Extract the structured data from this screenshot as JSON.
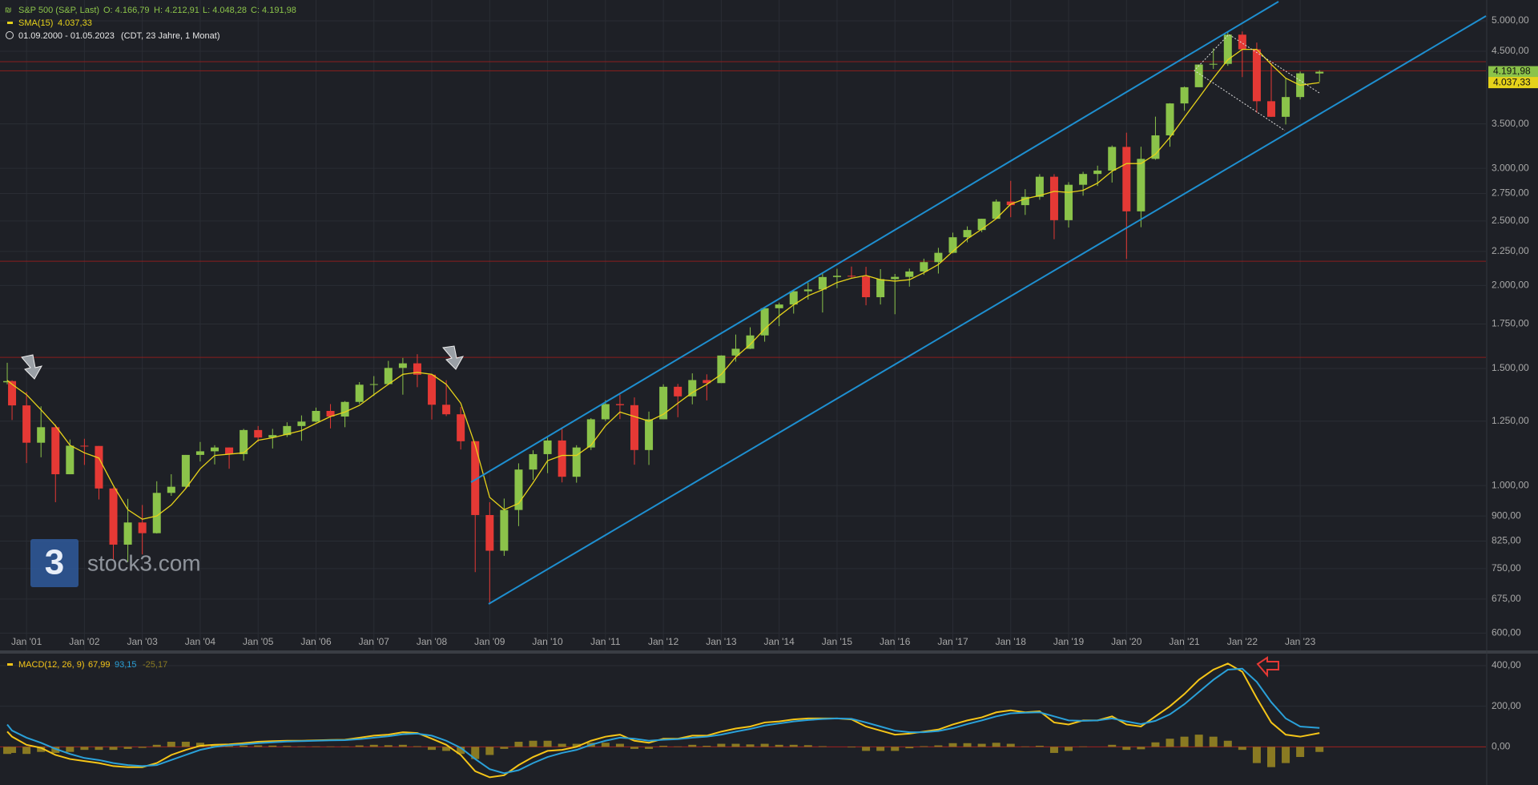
{
  "chart_data": [
    {
      "type": "candlestick",
      "title": "S&P 500 (S&P, Last)",
      "ohlc_labels": [
        "O: 4.166,79",
        "H: 4.212,91",
        "L: 4.048,28",
        "C: 4.191,98"
      ],
      "period": "01.09.2000 - 01.05.2023",
      "period_note": "(CDT, 23 Jahre, 1 Monat)",
      "watermark": "stock3.com",
      "logo": "3",
      "log_scale": true,
      "grid": true,
      "up_color": "#8bc34a",
      "down_color": "#e53935",
      "x": [
        "2000-09",
        "2000-10",
        "2001-01",
        "2001-04",
        "2001-07",
        "2001-10",
        "2002-01",
        "2002-04",
        "2002-07",
        "2002-10",
        "2003-01",
        "2003-04",
        "2003-07",
        "2003-10",
        "2004-01",
        "2004-04",
        "2004-07",
        "2004-10",
        "2005-01",
        "2005-04",
        "2005-07",
        "2005-10",
        "2006-01",
        "2006-04",
        "2006-07",
        "2006-10",
        "2007-01",
        "2007-04",
        "2007-07",
        "2007-10",
        "2008-01",
        "2008-04",
        "2008-07",
        "2008-10",
        "2009-01",
        "2009-04",
        "2009-07",
        "2009-10",
        "2010-01",
        "2010-04",
        "2010-07",
        "2010-10",
        "2011-01",
        "2011-04",
        "2011-07",
        "2011-10",
        "2012-01",
        "2012-04",
        "2012-07",
        "2012-10",
        "2013-01",
        "2013-04",
        "2013-07",
        "2013-10",
        "2014-01",
        "2014-04",
        "2014-07",
        "2014-10",
        "2015-01",
        "2015-04",
        "2015-07",
        "2015-10",
        "2016-01",
        "2016-04",
        "2016-07",
        "2016-10",
        "2017-01",
        "2017-04",
        "2017-07",
        "2017-10",
        "2018-01",
        "2018-04",
        "2018-07",
        "2018-10",
        "2019-01",
        "2019-04",
        "2019-07",
        "2019-10",
        "2020-01",
        "2020-04",
        "2020-07",
        "2020-10",
        "2021-01",
        "2021-04",
        "2021-07",
        "2021-10",
        "2022-01",
        "2022-04",
        "2022-07",
        "2022-10",
        "2023-01",
        "2023-05"
      ],
      "open": [
        1430,
        1436,
        1320,
        1160,
        1224,
        1040,
        1148,
        1147,
        990,
        815,
        880,
        848,
        975,
        996,
        1112,
        1126,
        1141,
        1115,
        1212,
        1181,
        1191,
        1229,
        1248,
        1295,
        1270,
        1336,
        1418,
        1421,
        1503,
        1527,
        1468,
        1323,
        1280,
        1166,
        903,
        798,
        919,
        1057,
        1115,
        1169,
        1031,
        1141,
        1258,
        1326,
        1321,
        1131,
        1258,
        1408,
        1362,
        1441,
        1426,
        1569,
        1606,
        1682,
        1848,
        1872,
        1960,
        1972,
        2059,
        2068,
        2063,
        1920,
        2044,
        2060,
        2099,
        2168,
        2239,
        2363,
        2423,
        2519,
        2674,
        2641,
        2718,
        2914,
        2507,
        2834,
        2942,
        2977,
        3231,
        2585,
        3100,
        3363,
        3756,
        3973,
        4298,
        4308,
        4766,
        4530,
        3785,
        3586,
        3840,
        4166.79
      ],
      "high": [
        1530,
        1440,
        1383,
        1316,
        1236,
        1173,
        1176,
        1147,
        994,
        955,
        935,
        1015,
        1040,
        1112,
        1163,
        1150,
        1141,
        1217,
        1229,
        1217,
        1245,
        1275,
        1310,
        1326,
        1340,
        1431,
        1461,
        1540,
        1556,
        1576,
        1471,
        1440,
        1313,
        1167,
        944,
        956,
        1080,
        1130,
        1180,
        1220,
        1150,
        1263,
        1344,
        1370,
        1357,
        1292,
        1420,
        1422,
        1475,
        1470,
        1570,
        1687,
        1730,
        1849,
        1884,
        1968,
        2019,
        2093,
        2119,
        2135,
        2133,
        2116,
        2081,
        2120,
        2194,
        2278,
        2401,
        2454,
        2519,
        2694,
        2873,
        2791,
        2940,
        2940,
        2860,
        2964,
        3028,
        3247,
        3394,
        3233,
        3588,
        3760,
        3983,
        4300,
        4546,
        4808,
        4819,
        4637,
        4325,
        4101,
        4195,
        4212.91
      ],
      "low": [
        1420,
        1255,
        1081,
        1103,
        944,
        1040,
        1074,
        953,
        775,
        768,
        788,
        847,
        965,
        990,
        1087,
        1076,
        1060,
        1090,
        1163,
        1137,
        1183,
        1168,
        1245,
        1219,
        1224,
        1327,
        1364,
        1417,
        1370,
        1406,
        1257,
        1272,
        1133,
        741,
        667,
        784,
        869,
        1020,
        1044,
        1011,
        1010,
        1131,
        1250,
        1259,
        1075,
        1074,
        1258,
        1267,
        1325,
        1343,
        1426,
        1536,
        1604,
        1646,
        1737,
        1814,
        1904,
        1821,
        1981,
        2048,
        1867,
        1872,
        1810,
        1992,
        2074,
        2084,
        2234,
        2322,
        2405,
        2520,
        2533,
        2553,
        2691,
        2347,
        2444,
        2729,
        2822,
        2856,
        2192,
        2447,
        3090,
        3233,
        3662,
        3975,
        4233,
        4279,
        4115,
        3637,
        3584,
        3492,
        3808,
        4048.28
      ],
      "close": [
        1436,
        1320,
        1160,
        1224,
        1040,
        1148,
        1147,
        990,
        815,
        880,
        848,
        975,
        996,
        1112,
        1126,
        1141,
        1115,
        1212,
        1181,
        1191,
        1229,
        1248,
        1295,
        1270,
        1336,
        1418,
        1421,
        1503,
        1527,
        1468,
        1323,
        1280,
        1166,
        903,
        798,
        919,
        1057,
        1115,
        1169,
        1031,
        1141,
        1258,
        1326,
        1321,
        1131,
        1258,
        1408,
        1362,
        1441,
        1426,
        1569,
        1606,
        1682,
        1848,
        1872,
        1960,
        1972,
        2059,
        2068,
        2063,
        1920,
        2044,
        2060,
        2099,
        2168,
        2239,
        2363,
        2423,
        2519,
        2674,
        2641,
        2718,
        2914,
        2507,
        2834,
        2942,
        2977,
        3231,
        2585,
        3100,
        3363,
        3756,
        3973,
        4298,
        4308,
        4766,
        4530,
        3785,
        3586,
        3840,
        4169,
        4191.98
      ],
      "sma": {
        "name": "SMA(15)",
        "color": "#e6d21a",
        "values": [
          1440,
          1420,
          1370,
          1300,
          1230,
          1150,
          1120,
          1100,
          1000,
          920,
          890,
          900,
          935,
          990,
          1060,
          1110,
          1115,
          1120,
          1170,
          1180,
          1195,
          1210,
          1240,
          1270,
          1290,
          1320,
          1370,
          1420,
          1470,
          1480,
          1470,
          1420,
          1330,
          1150,
          960,
          920,
          940,
          1010,
          1090,
          1110,
          1110,
          1150,
          1230,
          1290,
          1270,
          1250,
          1280,
          1330,
          1380,
          1420,
          1470,
          1560,
          1630,
          1720,
          1800,
          1870,
          1930,
          1970,
          2020,
          2050,
          2070,
          2040,
          2030,
          2040,
          2090,
          2150,
          2250,
          2350,
          2430,
          2520,
          2650,
          2700,
          2730,
          2770,
          2760,
          2780,
          2850,
          2970,
          3050,
          3050,
          3150,
          3340,
          3580,
          3830,
          4100,
          4370,
          4530,
          4530,
          4300,
          4100,
          4000,
          4037.33
        ],
        "last": {
          "value": 4037.33,
          "label": "4.037,33"
        }
      },
      "last_price": {
        "value": 4191.98,
        "label": "4.191,98"
      },
      "levels": [
        4340,
        4205,
        2175,
        1559
      ],
      "level_color": "#8b1e1e",
      "xlim": [
        "2000-09",
        "2026-05"
      ],
      "xticks": [
        {
          "value": "2001-01",
          "label": "Jan '01"
        },
        {
          "value": "2002-01",
          "label": "Jan '02"
        },
        {
          "value": "2003-01",
          "label": "Jan '03"
        },
        {
          "value": "2004-01",
          "label": "Jan '04"
        },
        {
          "value": "2005-01",
          "label": "Jan '05"
        },
        {
          "value": "2006-01",
          "label": "Jan '06"
        },
        {
          "value": "2007-01",
          "label": "Jan '07"
        },
        {
          "value": "2008-01",
          "label": "Jan '08"
        },
        {
          "value": "2009-01",
          "label": "Jan '09"
        },
        {
          "value": "2010-01",
          "label": "Jan '10"
        },
        {
          "value": "2011-01",
          "label": "Jan '11"
        },
        {
          "value": "2012-01",
          "label": "Jan '12"
        },
        {
          "value": "2013-01",
          "label": "Jan '13"
        },
        {
          "value": "2014-01",
          "label": "Jan '14"
        },
        {
          "value": "2015-01",
          "label": "Jan '15"
        },
        {
          "value": "2016-01",
          "label": "Jan '16"
        },
        {
          "value": "2017-01",
          "label": "Jan '17"
        },
        {
          "value": "2018-01",
          "label": "Jan '18"
        },
        {
          "value": "2019-01",
          "label": "Jan '19"
        },
        {
          "value": "2020-01",
          "label": "Jan '20"
        },
        {
          "value": "2021-01",
          "label": "Jan '21"
        },
        {
          "value": "2022-01",
          "label": "Jan '22"
        },
        {
          "value": "2023-01",
          "label": "Jan '23"
        }
      ],
      "ylim": [
        565,
        5374
      ],
      "yticks": [
        {
          "value": 600,
          "label": "600,00"
        },
        {
          "value": 675,
          "label": "675,00"
        },
        {
          "value": 750,
          "label": "750,00"
        },
        {
          "value": 825,
          "label": "825,00"
        },
        {
          "value": 900,
          "label": "900,00"
        },
        {
          "value": 1000,
          "label": "1.000,00"
        },
        {
          "value": 1250,
          "label": "1.250,00"
        },
        {
          "value": 1500,
          "label": "1.500,00"
        },
        {
          "value": 1750,
          "label": "1.750,00"
        },
        {
          "value": 2000,
          "label": "2.000,00"
        },
        {
          "value": 2250,
          "label": "2.250,00"
        },
        {
          "value": 2500,
          "label": "2.500,00"
        },
        {
          "value": 2750,
          "label": "2.750,00"
        },
        {
          "value": 3000,
          "label": "3.000,00"
        },
        {
          "value": 3500,
          "label": "3.500,00"
        },
        {
          "value": 4500,
          "label": "4.500,00"
        },
        {
          "value": 5000,
          "label": "5.000,00"
        }
      ]
    },
    {
      "type": "macd",
      "title": "MACD(12, 26, 9)",
      "series": [
        {
          "color": "#f5c518",
          "label": "67,99",
          "values": [
            75,
            50,
            10,
            -5,
            -40,
            -60,
            -70,
            -80,
            -95,
            -100,
            -100,
            -80,
            -40,
            -15,
            5,
            10,
            12,
            18,
            25,
            28,
            30,
            30,
            32,
            34,
            35,
            45,
            55,
            60,
            72,
            68,
            40,
            10,
            -40,
            -120,
            -150,
            -140,
            -90,
            -50,
            -20,
            -15,
            0,
            30,
            50,
            60,
            30,
            20,
            40,
            40,
            55,
            55,
            75,
            90,
            100,
            120,
            125,
            135,
            140,
            140,
            140,
            135,
            100,
            80,
            60,
            65,
            75,
            85,
            110,
            130,
            145,
            170,
            180,
            170,
            175,
            120,
            110,
            130,
            130,
            150,
            110,
            100,
            150,
            200,
            260,
            330,
            380,
            410,
            370,
            240,
            120,
            60,
            50,
            67.99
          ]
        },
        {
          "color": "#2aa0d8",
          "label": "93,15",
          "values": [
            110,
            80,
            45,
            20,
            -10,
            -35,
            -55,
            -65,
            -80,
            -90,
            -95,
            -90,
            -65,
            -40,
            -15,
            0,
            8,
            12,
            18,
            22,
            26,
            28,
            30,
            32,
            33,
            38,
            45,
            52,
            62,
            65,
            55,
            30,
            -5,
            -60,
            -110,
            -130,
            -115,
            -80,
            -50,
            -30,
            -15,
            10,
            30,
            45,
            40,
            30,
            35,
            38,
            45,
            50,
            60,
            75,
            88,
            105,
            115,
            125,
            132,
            137,
            140,
            138,
            120,
            100,
            80,
            72,
            72,
            78,
            92,
            112,
            130,
            150,
            165,
            168,
            170,
            150,
            130,
            128,
            130,
            140,
            125,
            112,
            128,
            160,
            210,
            270,
            330,
            380,
            385,
            320,
            220,
            140,
            100,
            93.15
          ]
        }
      ],
      "histogram": {
        "color": "#8a7a22",
        "label": "-25,17",
        "values": [
          -35,
          -30,
          -35,
          -25,
          -30,
          -25,
          -15,
          -15,
          -15,
          -10,
          -5,
          10,
          25,
          25,
          20,
          10,
          4,
          6,
          7,
          6,
          4,
          2,
          2,
          2,
          2,
          7,
          10,
          8,
          10,
          3,
          -15,
          -20,
          -35,
          -60,
          -40,
          -10,
          25,
          30,
          30,
          15,
          15,
          20,
          20,
          15,
          -10,
          -10,
          5,
          2,
          10,
          5,
          15,
          15,
          12,
          15,
          10,
          10,
          8,
          3,
          0,
          -3,
          -20,
          -20,
          -20,
          -7,
          3,
          7,
          18,
          18,
          15,
          20,
          15,
          2,
          5,
          -30,
          -20,
          2,
          0,
          10,
          -15,
          -12,
          22,
          40,
          50,
          60,
          50,
          30,
          -15,
          -80,
          -100,
          -80,
          -50,
          -25.17
        ]
      },
      "zero_color": "#a02020",
      "ylim": [
        -188,
        459
      ],
      "yticks": [
        {
          "value": 0,
          "label": "0,00"
        },
        {
          "value": 200,
          "label": "200,00"
        },
        {
          "value": 400,
          "label": "400,00"
        }
      ]
    }
  ]
}
